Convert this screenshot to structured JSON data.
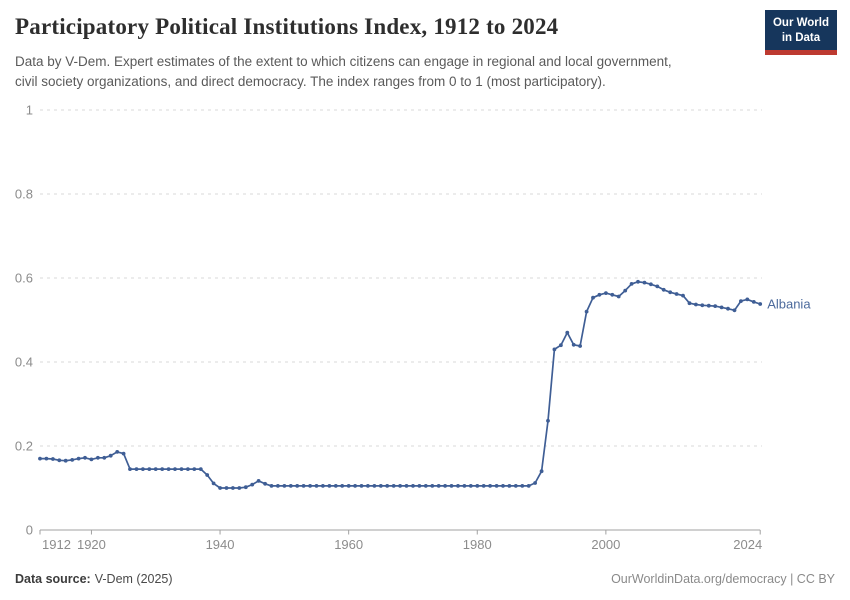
{
  "header": {
    "title": "Participatory Political Institutions Index, 1912 to 2024",
    "subtitle": [
      "Data by V-Dem. Expert estimates of the extent to which citizens can engage in regional and local government,",
      "civil society organizations, and direct democracy. The index ranges from 0 to 1 (most participatory)."
    ],
    "logo": {
      "line1": "Our World",
      "line2": "in Data"
    }
  },
  "footer": {
    "datasource_label": "Data source:",
    "datasource_value": "V-Dem (2025)",
    "right_text": "OurWorldinData.org/democracy | CC BY"
  },
  "colors": {
    "line": "#3f5e95",
    "entity_label": "#4c6a9c",
    "logo_navy": "#16365c",
    "logo_red": "#bd3a30",
    "gridline": "#dadada",
    "axis": "#a1a1a1",
    "tick_text": "#8c8c8c"
  },
  "chart_data": {
    "type": "line",
    "title": "Participatory Political Institutions Index, 1912 to 2024",
    "xlabel": "",
    "ylabel": "",
    "ylim": [
      0,
      1
    ],
    "xlim": [
      1912,
      2024
    ],
    "grid": "horizontal-dashed",
    "legend_position": "end-of-line",
    "yticks": [
      {
        "value": 0,
        "label": "0"
      },
      {
        "value": 0.2,
        "label": "0.2"
      },
      {
        "value": 0.4,
        "label": "0.4"
      },
      {
        "value": 0.6,
        "label": "0.6"
      },
      {
        "value": 0.8,
        "label": "0.8"
      },
      {
        "value": 1,
        "label": "1"
      }
    ],
    "xticks": [
      1912,
      1920,
      1940,
      1960,
      1980,
      2000,
      2024
    ],
    "series": [
      {
        "name": "Albania",
        "color": "#3f5e95",
        "points": [
          [
            1912,
            0.17
          ],
          [
            1913,
            0.17
          ],
          [
            1914,
            0.169
          ],
          [
            1915,
            0.166
          ],
          [
            1916,
            0.165
          ],
          [
            1917,
            0.167
          ],
          [
            1918,
            0.17
          ],
          [
            1919,
            0.172
          ],
          [
            1920,
            0.168
          ],
          [
            1921,
            0.172
          ],
          [
            1922,
            0.172
          ],
          [
            1923,
            0.177
          ],
          [
            1924,
            0.186
          ],
          [
            1925,
            0.182
          ],
          [
            1926,
            0.145
          ],
          [
            1927,
            0.145
          ],
          [
            1928,
            0.145
          ],
          [
            1929,
            0.145
          ],
          [
            1930,
            0.145
          ],
          [
            1931,
            0.145
          ],
          [
            1932,
            0.145
          ],
          [
            1933,
            0.145
          ],
          [
            1934,
            0.145
          ],
          [
            1935,
            0.145
          ],
          [
            1936,
            0.145
          ],
          [
            1937,
            0.145
          ],
          [
            1938,
            0.131
          ],
          [
            1939,
            0.111
          ],
          [
            1940,
            0.1
          ],
          [
            1941,
            0.1
          ],
          [
            1942,
            0.1
          ],
          [
            1943,
            0.1
          ],
          [
            1944,
            0.102
          ],
          [
            1945,
            0.108
          ],
          [
            1946,
            0.117
          ],
          [
            1947,
            0.11
          ],
          [
            1948,
            0.105
          ],
          [
            1949,
            0.105
          ],
          [
            1950,
            0.105
          ],
          [
            1951,
            0.105
          ],
          [
            1952,
            0.105
          ],
          [
            1953,
            0.105
          ],
          [
            1954,
            0.105
          ],
          [
            1955,
            0.105
          ],
          [
            1956,
            0.105
          ],
          [
            1957,
            0.105
          ],
          [
            1958,
            0.105
          ],
          [
            1959,
            0.105
          ],
          [
            1960,
            0.105
          ],
          [
            1961,
            0.105
          ],
          [
            1962,
            0.105
          ],
          [
            1963,
            0.105
          ],
          [
            1964,
            0.105
          ],
          [
            1965,
            0.105
          ],
          [
            1966,
            0.105
          ],
          [
            1967,
            0.105
          ],
          [
            1968,
            0.105
          ],
          [
            1969,
            0.105
          ],
          [
            1970,
            0.105
          ],
          [
            1971,
            0.105
          ],
          [
            1972,
            0.105
          ],
          [
            1973,
            0.105
          ],
          [
            1974,
            0.105
          ],
          [
            1975,
            0.105
          ],
          [
            1976,
            0.105
          ],
          [
            1977,
            0.105
          ],
          [
            1978,
            0.105
          ],
          [
            1979,
            0.105
          ],
          [
            1980,
            0.105
          ],
          [
            1981,
            0.105
          ],
          [
            1982,
            0.105
          ],
          [
            1983,
            0.105
          ],
          [
            1984,
            0.105
          ],
          [
            1985,
            0.105
          ],
          [
            1986,
            0.105
          ],
          [
            1987,
            0.105
          ],
          [
            1988,
            0.105
          ],
          [
            1989,
            0.112
          ],
          [
            1990,
            0.14
          ],
          [
            1991,
            0.26
          ],
          [
            1992,
            0.43
          ],
          [
            1993,
            0.44
          ],
          [
            1994,
            0.47
          ],
          [
            1995,
            0.441
          ],
          [
            1996,
            0.438
          ],
          [
            1997,
            0.52
          ],
          [
            1998,
            0.553
          ],
          [
            1999,
            0.56
          ],
          [
            2000,
            0.564
          ],
          [
            2001,
            0.56
          ],
          [
            2002,
            0.556
          ],
          [
            2003,
            0.57
          ],
          [
            2004,
            0.586
          ],
          [
            2005,
            0.591
          ],
          [
            2006,
            0.589
          ],
          [
            2007,
            0.585
          ],
          [
            2008,
            0.58
          ],
          [
            2009,
            0.572
          ],
          [
            2010,
            0.566
          ],
          [
            2011,
            0.562
          ],
          [
            2012,
            0.558
          ],
          [
            2013,
            0.54
          ],
          [
            2014,
            0.537
          ],
          [
            2015,
            0.535
          ],
          [
            2016,
            0.534
          ],
          [
            2017,
            0.533
          ],
          [
            2018,
            0.53
          ],
          [
            2019,
            0.527
          ],
          [
            2020,
            0.523
          ],
          [
            2021,
            0.545
          ],
          [
            2022,
            0.549
          ],
          [
            2023,
            0.543
          ],
          [
            2024,
            0.538
          ]
        ]
      }
    ]
  }
}
